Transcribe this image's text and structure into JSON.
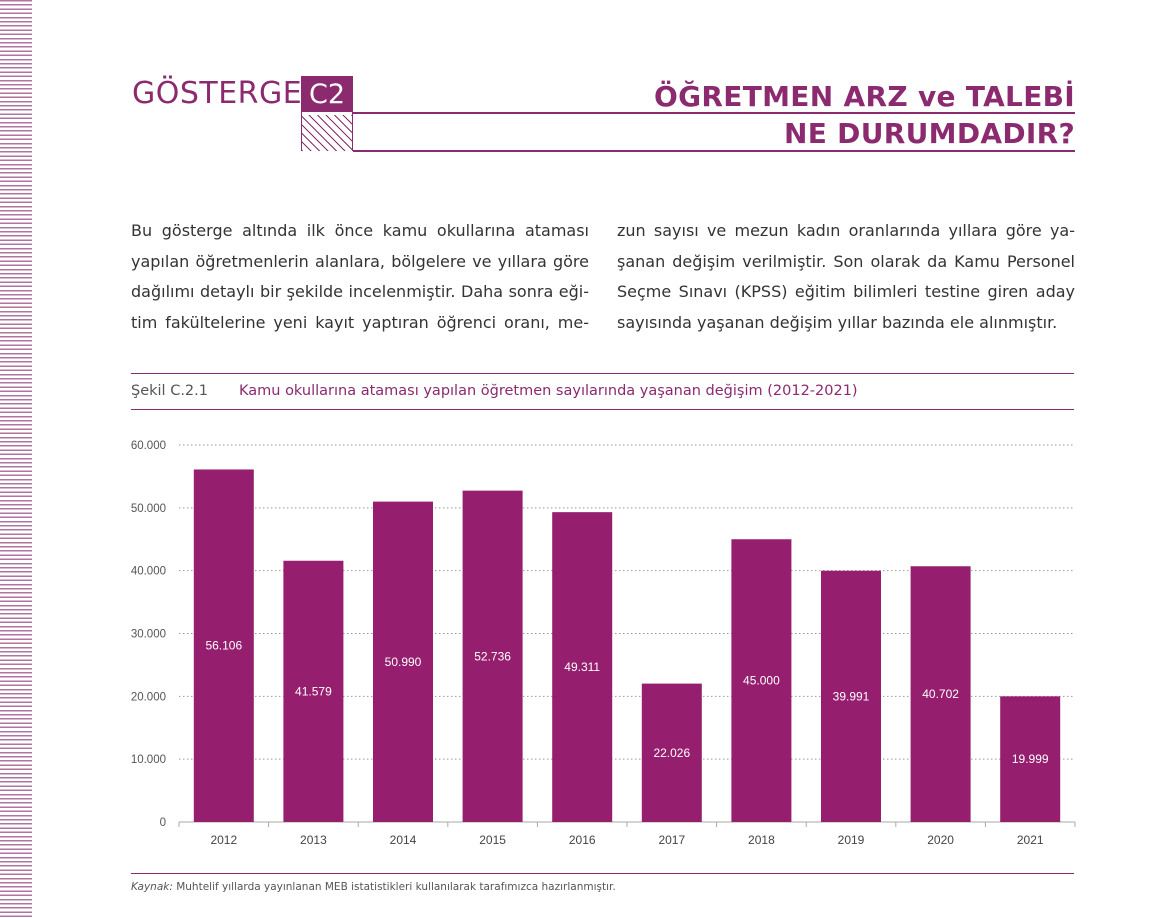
{
  "header": {
    "section_label": "GÖSTERGE",
    "section_code": "C2",
    "title_line1": "ÖĞRETMEN ARZ ve TALEBİ",
    "title_line2": "NE DURUMDADIR?"
  },
  "intro": {
    "left_lines": [
      "Bu gösterge altında ilk önce kamu okullarına ataması",
      "yapılan öğretmenlerin alanlara, bölgelere ve yıllara göre",
      "dağılımı detaylı bir şekilde incelenmiştir. Daha sonra eği-",
      "tim fakültelerine yeni kayıt yaptıran öğrenci oranı, me-"
    ],
    "right_lines": [
      "zun sayısı ve mezun kadın oranlarında yıllara göre ya-",
      "şanan değişim verilmiştir. Son olarak da Kamu Personel",
      "Seçme Sınavı (KPSS) eğitim bilimleri testine giren aday",
      "sayısında yaşanan değişim yıllar bazında ele alınmıştır."
    ]
  },
  "figure": {
    "label": "Şekil C.2.1",
    "title": "Kamu okullarına ataması yapılan öğretmen sayılarında yaşanan değişim (2012-2021)"
  },
  "source": {
    "prefix": "Kaynak:",
    "text": "Muhtelif yıllarda yayınlanan MEB istatistikleri kullanılarak tarafımızca hazırlanmıştır."
  },
  "colors": {
    "accent": "#8b2a6e",
    "bar": "#951f6e"
  },
  "chart_data": {
    "type": "bar",
    "categories": [
      "2012",
      "2013",
      "2014",
      "2015",
      "2016",
      "2017",
      "2018",
      "2019",
      "2020",
      "2021"
    ],
    "values": [
      56106,
      41579,
      50990,
      52736,
      49311,
      22026,
      45000,
      39991,
      40702,
      19999
    ],
    "value_labels": [
      "56.106",
      "41.579",
      "50.990",
      "52.736",
      "49.311",
      "22.026",
      "45.000",
      "39.991",
      "40.702",
      "19.999"
    ],
    "yticks": [
      0,
      10000,
      20000,
      30000,
      40000,
      50000,
      60000
    ],
    "ytick_labels": [
      "0",
      "10.000",
      "20.000",
      "30.000",
      "40.000",
      "50.000",
      "60.000"
    ],
    "ylim": [
      0,
      60000
    ],
    "grid": true,
    "legend": "none",
    "xlabel": "",
    "ylabel": ""
  }
}
